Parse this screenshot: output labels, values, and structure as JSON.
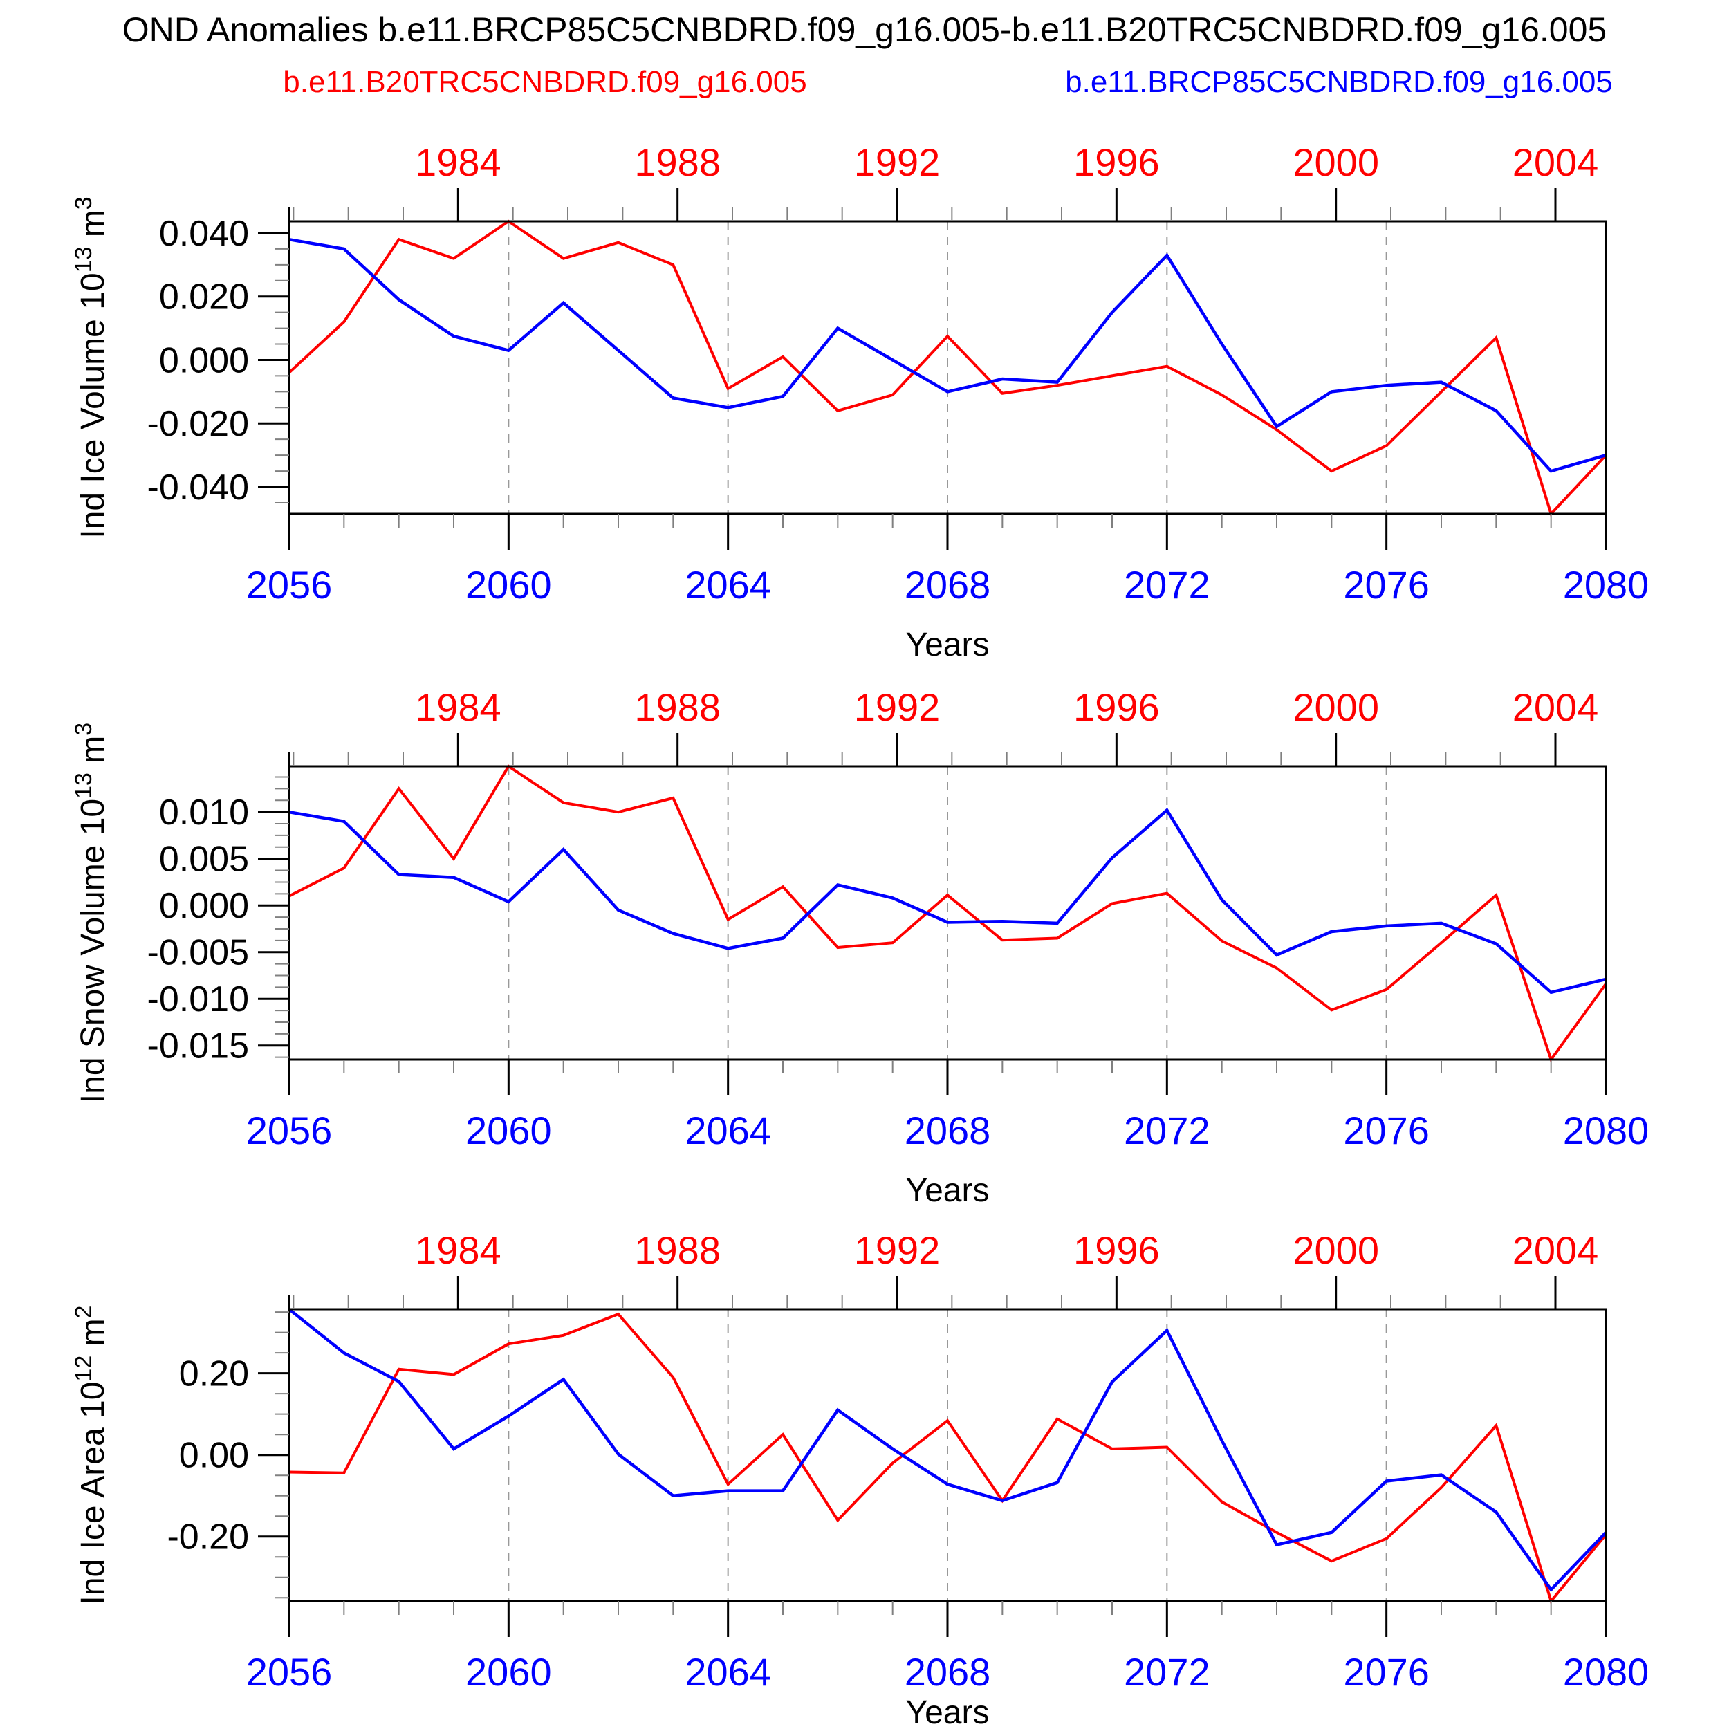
{
  "title": "OND Anomalies b.e11.BRCP85C5CNBDRD.f09_g16.005-b.e11.B20TRC5CNBDRD.f09_g16.005",
  "legend": {
    "red_label": "b.e11.B20TRC5CNBDRD.f09_g16.005",
    "blue_label": "b.e11.BRCP85C5CNBDRD.f09_g16.005",
    "red_color": "#ff0000",
    "blue_color": "#0000ff"
  },
  "x_axis": {
    "label": "Years",
    "range": [
      2056,
      2080
    ],
    "bottom_tick_years": [
      2056,
      2060,
      2064,
      2068,
      2072,
      2076,
      2080
    ],
    "top_tick_years": [
      1984,
      1988,
      1992,
      1996,
      2000,
      2004
    ],
    "top_axis_offset_years": 75.08,
    "dashed_gridline_years": [
      2060,
      2064,
      2068,
      2072,
      2076
    ],
    "bottom_label_color": "#0000ff",
    "top_label_color": "#ff0000"
  },
  "years": [
    2056,
    2057,
    2058,
    2059,
    2060,
    2061,
    2062,
    2063,
    2064,
    2065,
    2066,
    2067,
    2068,
    2069,
    2070,
    2071,
    2072,
    2073,
    2074,
    2075,
    2076,
    2077,
    2078,
    2079,
    2080
  ],
  "chart_data": [
    {
      "type": "line",
      "ylabel": "Ind Ice Volume 10^13 m^3",
      "ylabel_parts": {
        "base1": "Ind Ice Volume 10",
        "sup1": "13",
        "base2": " m",
        "sup2": "3"
      },
      "ylim": [
        -0.0485,
        0.0437
      ],
      "yticks": [
        {
          "value": 0.04,
          "label": "0.040"
        },
        {
          "value": 0.02,
          "label": "0.020"
        },
        {
          "value": 0.0,
          "label": "0.000"
        },
        {
          "value": -0.02,
          "label": "-0.020"
        },
        {
          "value": -0.04,
          "label": "-0.040"
        }
      ],
      "minor_step": 0.005,
      "series": [
        {
          "name": "b.e11.B20TRC5CNBDRD.f09_g16.005",
          "color": "#ff0000",
          "values": [
            -0.004,
            0.012,
            0.038,
            0.032,
            0.0437,
            0.032,
            0.037,
            0.03,
            -0.009,
            0.001,
            -0.016,
            -0.011,
            0.0075,
            -0.0105,
            -0.008,
            -0.005,
            -0.002,
            -0.011,
            -0.022,
            -0.035,
            -0.027,
            -0.01,
            0.007,
            -0.0485,
            -0.03
          ]
        },
        {
          "name": "b.e11.BRCP85C5CNBDRD.f09_g16.005",
          "color": "#0000ff",
          "values": [
            0.038,
            0.035,
            0.019,
            0.0075,
            0.003,
            0.018,
            0.003,
            -0.012,
            -0.015,
            -0.0115,
            0.01,
            0.0,
            -0.01,
            -0.006,
            -0.007,
            0.015,
            0.033,
            0.005,
            -0.021,
            -0.01,
            -0.008,
            -0.007,
            -0.016,
            -0.035,
            -0.03
          ]
        }
      ]
    },
    {
      "type": "line",
      "ylabel": "Ind Snow Volume 10^13 m^3",
      "ylabel_parts": {
        "base1": "Ind Snow Volume 10",
        "sup1": "13",
        "base2": " m",
        "sup2": "3"
      },
      "ylim": [
        -0.0165,
        0.0149
      ],
      "yticks": [
        {
          "value": 0.01,
          "label": "0.010"
        },
        {
          "value": 0.005,
          "label": "0.005"
        },
        {
          "value": 0.0,
          "label": "0.000"
        },
        {
          "value": -0.005,
          "label": "-0.005"
        },
        {
          "value": -0.01,
          "label": "-0.010"
        },
        {
          "value": -0.015,
          "label": "-0.015"
        }
      ],
      "minor_step": 0.00125,
      "series": [
        {
          "name": "b.e11.B20TRC5CNBDRD.f09_g16.005",
          "color": "#ff0000",
          "values": [
            0.001,
            0.004,
            0.0125,
            0.005,
            0.0149,
            0.011,
            0.01,
            0.0115,
            -0.0015,
            0.002,
            -0.0045,
            -0.004,
            0.0011,
            -0.0037,
            -0.0035,
            0.0002,
            0.0013,
            -0.0038,
            -0.0067,
            -0.0112,
            -0.009,
            -0.004,
            0.0011,
            -0.0165,
            -0.0084
          ]
        },
        {
          "name": "b.e11.BRCP85C5CNBDRD.f09_g16.005",
          "color": "#0000ff",
          "values": [
            0.01,
            0.009,
            0.0033,
            0.003,
            0.0004,
            0.006,
            -0.0005,
            -0.003,
            -0.0046,
            -0.0035,
            0.0022,
            0.0008,
            -0.0018,
            -0.0017,
            -0.0019,
            0.0051,
            0.0102,
            0.0006,
            -0.0053,
            -0.0028,
            -0.0022,
            -0.0019,
            -0.0041,
            -0.0093,
            -0.0079
          ]
        }
      ]
    },
    {
      "type": "line",
      "ylabel": "Ind Ice Area 10^12 m^2",
      "ylabel_parts": {
        "base1": "Ind Ice Area 10",
        "sup1": "12",
        "base2": " m",
        "sup2": "2"
      },
      "ylim": [
        -0.358,
        0.357
      ],
      "yticks": [
        {
          "value": 0.2,
          "label": "0.20"
        },
        {
          "value": 0.0,
          "label": "0.00"
        },
        {
          "value": -0.2,
          "label": "-0.20"
        }
      ],
      "minor_step": 0.05,
      "series": [
        {
          "name": "b.e11.B20TRC5CNBDRD.f09_g16.005",
          "color": "#ff0000",
          "values": [
            -0.042,
            -0.044,
            0.21,
            0.197,
            0.272,
            0.293,
            0.345,
            0.19,
            -0.072,
            0.05,
            -0.16,
            -0.02,
            0.084,
            -0.112,
            0.088,
            0.015,
            0.019,
            -0.115,
            -0.19,
            -0.26,
            -0.205,
            -0.08,
            0.072,
            -0.358,
            -0.195
          ]
        },
        {
          "name": "b.e11.BRCP85C5CNBDRD.f09_g16.005",
          "color": "#0000ff",
          "values": [
            0.357,
            0.25,
            0.18,
            0.015,
            0.095,
            0.185,
            0.002,
            -0.1,
            -0.088,
            -0.088,
            0.11,
            0.015,
            -0.072,
            -0.112,
            -0.068,
            0.179,
            0.305,
            0.035,
            -0.22,
            -0.19,
            -0.064,
            -0.049,
            -0.14,
            -0.33,
            -0.19
          ]
        }
      ]
    }
  ]
}
